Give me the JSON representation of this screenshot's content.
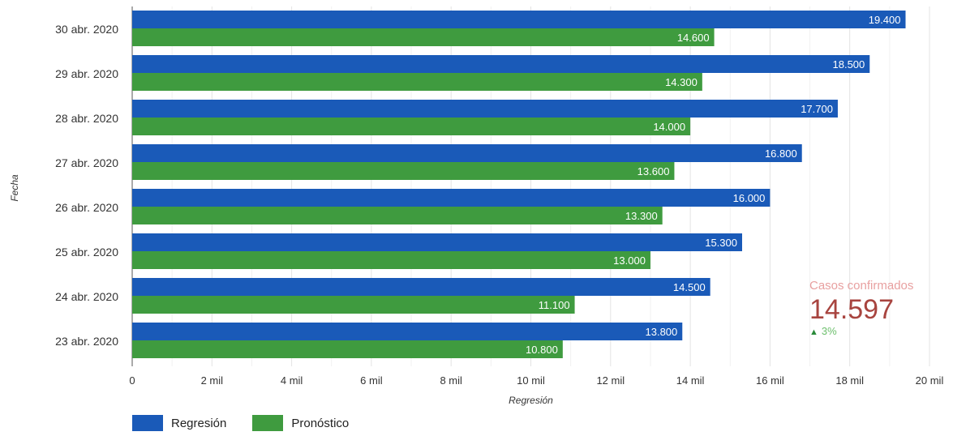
{
  "chart_data": {
    "type": "bar",
    "orientation": "horizontal",
    "categories": [
      "30 abr. 2020",
      "29 abr. 2020",
      "28 abr. 2020",
      "27 abr. 2020",
      "26 abr. 2020",
      "25 abr. 2020",
      "24 abr. 2020",
      "23 abr. 2020"
    ],
    "series": [
      {
        "name": "Regresión",
        "color": "#1a5ab8",
        "values": [
          19400,
          18500,
          17700,
          16800,
          16000,
          15300,
          14500,
          13800
        ],
        "labels": [
          "19.400",
          "18.500",
          "17.700",
          "16.800",
          "16.000",
          "15.300",
          "14.500",
          "13.800"
        ]
      },
      {
        "name": "Pronóstico",
        "color": "#3f9b3f",
        "values": [
          14600,
          14300,
          14000,
          13600,
          13300,
          13000,
          11100,
          10800
        ],
        "labels": [
          "14.600",
          "14.300",
          "14.000",
          "13.600",
          "13.300",
          "13.000",
          "11.100",
          "10.800"
        ]
      }
    ],
    "xlim": [
      0,
      20000
    ],
    "xticks": [
      0,
      2000,
      4000,
      6000,
      8000,
      10000,
      12000,
      14000,
      16000,
      18000,
      20000
    ],
    "xtick_labels": [
      "0",
      "2 mil",
      "4 mil",
      "6 mil",
      "8 mil",
      "10 mil",
      "12 mil",
      "14 mil",
      "16 mil",
      "18 mil",
      "20 mil"
    ],
    "xlabel": "Regresión",
    "ylabel": "Fecha",
    "grid": true,
    "legend": "bottom-left"
  },
  "scorecard": {
    "label": "Casos confirmados",
    "value": "14.597",
    "delta": "3%"
  }
}
